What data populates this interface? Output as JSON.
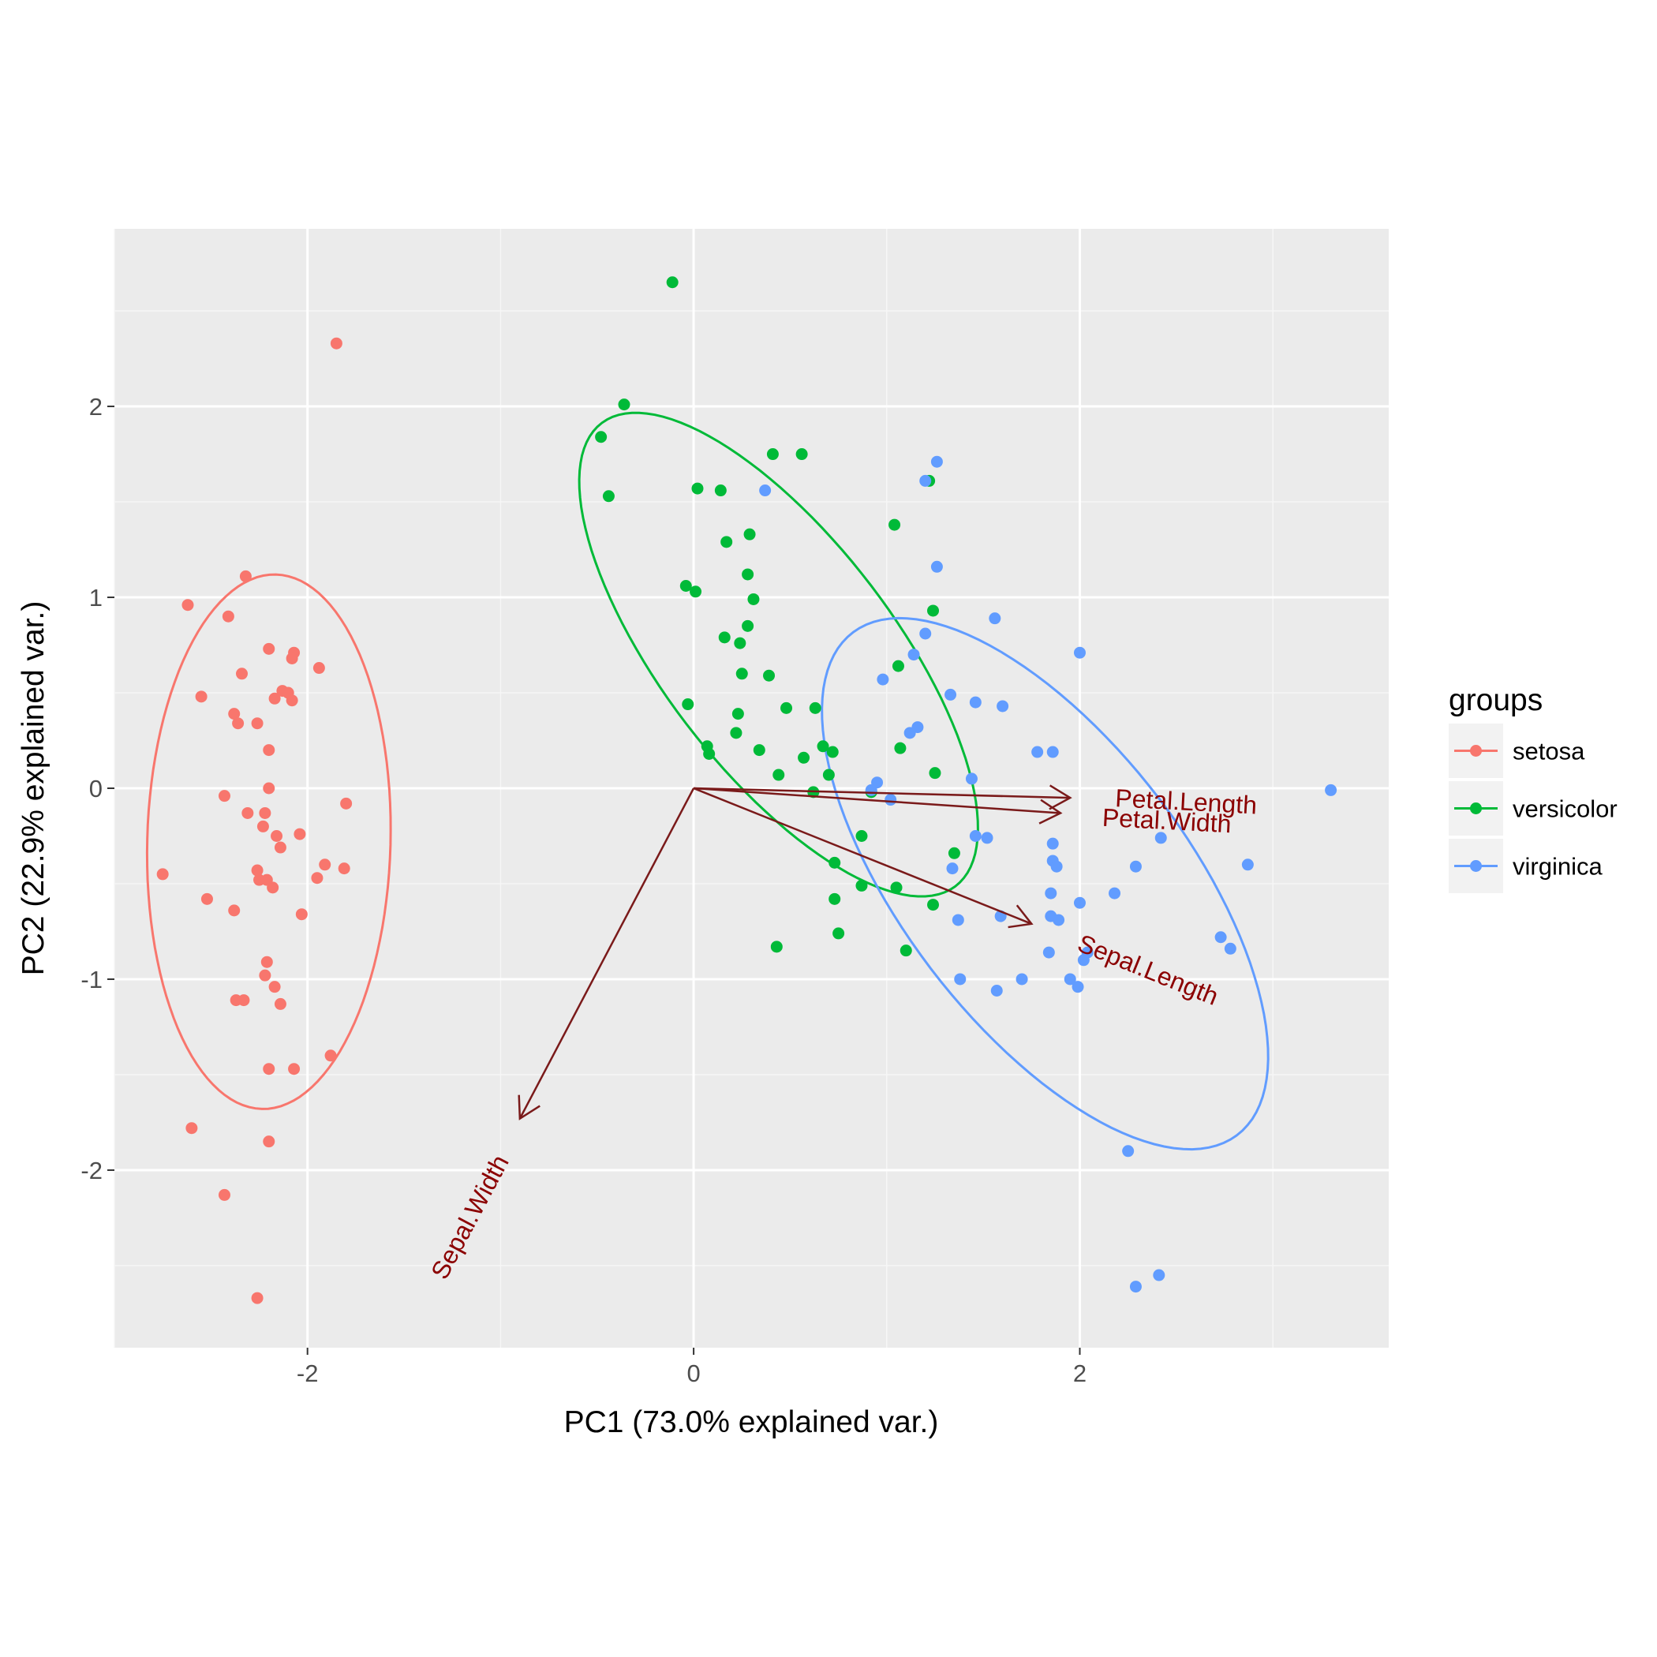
{
  "chart_data": {
    "type": "scatter",
    "title": "",
    "xlabel": "PC1 (73.0% explained var.)",
    "ylabel": "PC2 (22.9% explained var.)",
    "xlim": [
      -3.0,
      3.6
    ],
    "ylim": [
      -2.93,
      2.93
    ],
    "xticks": [
      -2,
      0,
      2
    ],
    "yticks": [
      -2,
      -1,
      0,
      1,
      2
    ],
    "grid": true,
    "legend": {
      "title": "groups",
      "position": "right"
    },
    "colors": {
      "setosa": "#f8766d",
      "versicolor": "#00ba38",
      "virginica": "#619cff",
      "arrow": "#8b0000",
      "arrow_line": "#7a1a1a"
    },
    "series": [
      {
        "name": "setosa",
        "points": [
          [
            -1.85,
            2.33
          ],
          [
            -2.32,
            1.11
          ],
          [
            -2.62,
            0.96
          ],
          [
            -2.41,
            0.9
          ],
          [
            -2.2,
            0.73
          ],
          [
            -2.07,
            0.71
          ],
          [
            -2.08,
            0.68
          ],
          [
            -2.34,
            0.6
          ],
          [
            -1.94,
            0.63
          ],
          [
            -2.13,
            0.51
          ],
          [
            -2.1,
            0.5
          ],
          [
            -2.55,
            0.48
          ],
          [
            -2.17,
            0.47
          ],
          [
            -2.08,
            0.46
          ],
          [
            -2.38,
            0.39
          ],
          [
            -2.36,
            0.34
          ],
          [
            -2.26,
            0.34
          ],
          [
            -2.2,
            0.2
          ],
          [
            -2.2,
            0.0
          ],
          [
            -1.8,
            -0.08
          ],
          [
            -2.43,
            -0.04
          ],
          [
            -2.31,
            -0.13
          ],
          [
            -2.22,
            -0.13
          ],
          [
            -2.23,
            -0.2
          ],
          [
            -2.04,
            -0.24
          ],
          [
            -2.14,
            -0.31
          ],
          [
            -2.16,
            -0.25
          ],
          [
            -1.91,
            -0.4
          ],
          [
            -1.81,
            -0.42
          ],
          [
            -2.75,
            -0.45
          ],
          [
            -2.26,
            -0.43
          ],
          [
            -2.25,
            -0.48
          ],
          [
            -2.21,
            -0.48
          ],
          [
            -1.95,
            -0.47
          ],
          [
            -2.18,
            -0.52
          ],
          [
            -2.52,
            -0.58
          ],
          [
            -2.38,
            -0.64
          ],
          [
            -2.03,
            -0.66
          ],
          [
            -2.21,
            -0.91
          ],
          [
            -2.22,
            -0.98
          ],
          [
            -2.17,
            -1.04
          ],
          [
            -2.37,
            -1.11
          ],
          [
            -2.33,
            -1.11
          ],
          [
            -2.14,
            -1.13
          ],
          [
            -1.88,
            -1.4
          ],
          [
            -2.07,
            -1.47
          ],
          [
            -2.2,
            -1.47
          ],
          [
            -2.6,
            -1.78
          ],
          [
            -2.2,
            -1.85
          ],
          [
            -2.43,
            -2.13
          ],
          [
            -2.26,
            -2.67
          ]
        ]
      },
      {
        "name": "versicolor",
        "points": [
          [
            -0.11,
            2.65
          ],
          [
            -0.36,
            2.01
          ],
          [
            -0.48,
            1.84
          ],
          [
            -0.44,
            1.53
          ],
          [
            0.41,
            1.75
          ],
          [
            0.56,
            1.75
          ],
          [
            0.02,
            1.57
          ],
          [
            0.14,
            1.56
          ],
          [
            1.22,
            1.61
          ],
          [
            0.17,
            1.29
          ],
          [
            0.29,
            1.33
          ],
          [
            0.28,
            1.12
          ],
          [
            1.04,
            1.38
          ],
          [
            -0.04,
            1.06
          ],
          [
            0.01,
            1.03
          ],
          [
            0.31,
            0.99
          ],
          [
            0.28,
            0.85
          ],
          [
            0.16,
            0.79
          ],
          [
            0.24,
            0.76
          ],
          [
            1.24,
            0.93
          ],
          [
            1.06,
            0.64
          ],
          [
            0.25,
            0.6
          ],
          [
            0.39,
            0.59
          ],
          [
            -0.03,
            0.44
          ],
          [
            0.48,
            0.42
          ],
          [
            0.63,
            0.42
          ],
          [
            0.23,
            0.39
          ],
          [
            0.22,
            0.29
          ],
          [
            0.07,
            0.22
          ],
          [
            0.08,
            0.18
          ],
          [
            0.34,
            0.2
          ],
          [
            0.67,
            0.22
          ],
          [
            0.72,
            0.19
          ],
          [
            0.57,
            0.16
          ],
          [
            1.07,
            0.21
          ],
          [
            0.44,
            0.07
          ],
          [
            0.7,
            0.07
          ],
          [
            1.25,
            0.08
          ],
          [
            0.62,
            -0.02
          ],
          [
            0.92,
            -0.02
          ],
          [
            0.87,
            -0.25
          ],
          [
            1.35,
            -0.34
          ],
          [
            0.73,
            -0.39
          ],
          [
            0.87,
            -0.51
          ],
          [
            1.05,
            -0.52
          ],
          [
            0.73,
            -0.58
          ],
          [
            1.24,
            -0.61
          ],
          [
            0.75,
            -0.76
          ],
          [
            0.43,
            -0.83
          ],
          [
            1.1,
            -0.85
          ]
        ]
      },
      {
        "name": "virginica",
        "points": [
          [
            1.26,
            1.71
          ],
          [
            1.2,
            1.61
          ],
          [
            0.37,
            1.56
          ],
          [
            1.26,
            1.16
          ],
          [
            1.56,
            0.89
          ],
          [
            2.0,
            0.71
          ],
          [
            1.2,
            0.81
          ],
          [
            1.14,
            0.7
          ],
          [
            0.98,
            0.57
          ],
          [
            1.33,
            0.49
          ],
          [
            1.46,
            0.45
          ],
          [
            1.6,
            0.43
          ],
          [
            1.16,
            0.32
          ],
          [
            1.12,
            0.29
          ],
          [
            1.78,
            0.19
          ],
          [
            1.86,
            0.19
          ],
          [
            1.44,
            0.05
          ],
          [
            0.95,
            0.03
          ],
          [
            0.92,
            -0.01
          ],
          [
            1.02,
            -0.06
          ],
          [
            3.3,
            -0.01
          ],
          [
            1.46,
            -0.25
          ],
          [
            1.52,
            -0.26
          ],
          [
            2.42,
            -0.26
          ],
          [
            1.86,
            -0.29
          ],
          [
            1.86,
            -0.38
          ],
          [
            1.88,
            -0.41
          ],
          [
            2.87,
            -0.4
          ],
          [
            1.34,
            -0.42
          ],
          [
            2.29,
            -0.41
          ],
          [
            1.85,
            -0.55
          ],
          [
            2.18,
            -0.55
          ],
          [
            2.0,
            -0.6
          ],
          [
            1.59,
            -0.67
          ],
          [
            1.85,
            -0.67
          ],
          [
            1.89,
            -0.69
          ],
          [
            1.37,
            -0.69
          ],
          [
            2.73,
            -0.78
          ],
          [
            2.78,
            -0.84
          ],
          [
            1.84,
            -0.86
          ],
          [
            2.04,
            -0.86
          ],
          [
            2.02,
            -0.9
          ],
          [
            1.95,
            -1.0
          ],
          [
            1.38,
            -1.0
          ],
          [
            1.7,
            -1.0
          ],
          [
            1.99,
            -1.04
          ],
          [
            1.57,
            -1.06
          ],
          [
            2.25,
            -1.9
          ],
          [
            2.41,
            -2.55
          ],
          [
            2.29,
            -2.61
          ]
        ]
      }
    ],
    "ellipses": [
      {
        "group": "setosa",
        "center": [
          -2.2,
          -0.28
        ],
        "rx": 0.63,
        "ry": 1.4,
        "angle_deg": -1.5
      },
      {
        "group": "versicolor",
        "center": [
          0.44,
          0.7
        ],
        "rx": 1.52,
        "ry": 0.6,
        "angle_deg": -53
      },
      {
        "group": "virginica",
        "center": [
          1.82,
          -0.5
        ],
        "rx": 1.65,
        "ry": 0.74,
        "angle_deg": -53
      }
    ],
    "loadings": [
      {
        "name": "Petal.Length",
        "end": [
          1.95,
          -0.05
        ],
        "label": [
          2.55,
          -0.08
        ],
        "label_angle_deg": 3
      },
      {
        "name": "Petal.Width",
        "end": [
          1.9,
          -0.13
        ],
        "label": [
          2.45,
          -0.18
        ],
        "label_angle_deg": 3
      },
      {
        "name": "Sepal.Length",
        "end": [
          1.75,
          -0.71
        ],
        "label": [
          2.35,
          -0.96
        ],
        "label_angle_deg": 22
      },
      {
        "name": "Sepal.Width",
        "end": [
          -0.9,
          -1.73
        ],
        "label": [
          -1.15,
          -2.25
        ],
        "label_angle_deg": -62
      }
    ]
  }
}
